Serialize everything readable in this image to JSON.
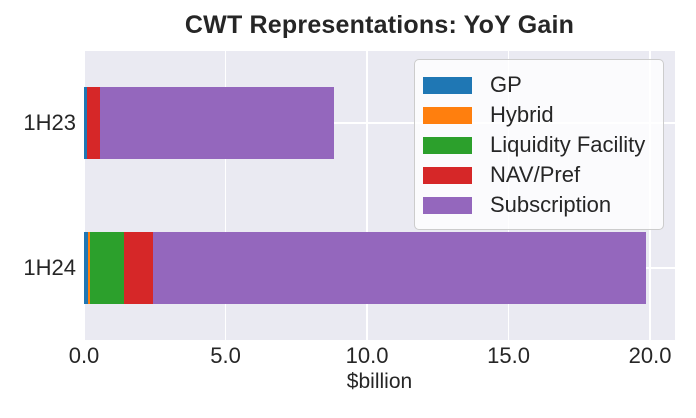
{
  "chart_data": {
    "type": "bar",
    "orientation": "horizontal",
    "stacked": true,
    "title": "CWT Representations: YoY Gain",
    "xlabel": "$billion",
    "categories": [
      "1H23",
      "1H24"
    ],
    "series": [
      {
        "name": "GP",
        "color": "#1f77b4",
        "values": [
          0.1,
          0.15
        ]
      },
      {
        "name": "Hybrid",
        "color": "#ff7f0e",
        "values": [
          0.0,
          0.05
        ]
      },
      {
        "name": "Liquidity Facility",
        "color": "#2ca02c",
        "values": [
          0.0,
          1.2
        ]
      },
      {
        "name": "NAV/Pref",
        "color": "#d62728",
        "values": [
          0.45,
          1.05
        ]
      },
      {
        "name": "Subscription",
        "color": "#9467bd",
        "values": [
          8.3,
          17.4
        ]
      }
    ],
    "xticks": [
      0,
      5,
      10,
      15,
      20
    ],
    "xtick_labels": [
      "0.0",
      "5.0",
      "10.0",
      "15.0",
      "20.0"
    ],
    "xlim": [
      0,
      20.88
    ],
    "grid": true,
    "plot_background": "#eaeaf2",
    "gridline_color": "#ffffff",
    "legend_position": "upper right",
    "legend_labels": [
      "GP",
      "Hybrid",
      "Liquidity Facility",
      "NAV/Pref",
      "Subscription"
    ]
  }
}
